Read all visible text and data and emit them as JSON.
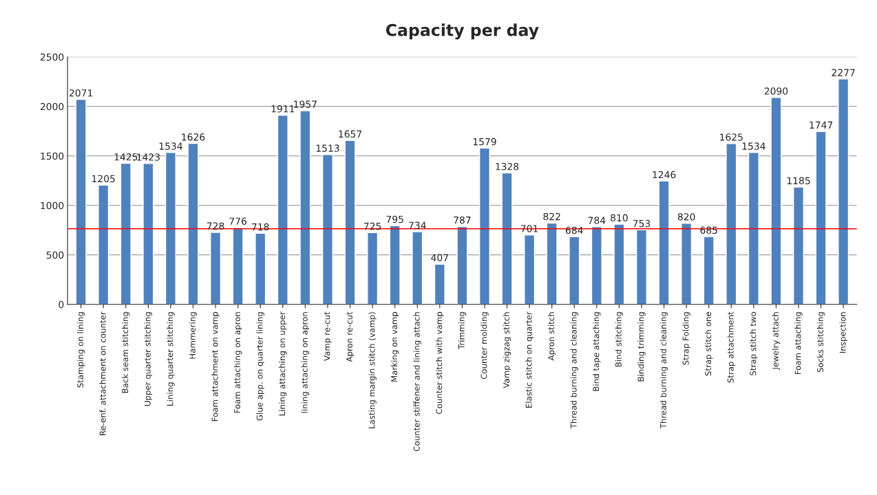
{
  "chart_data": {
    "type": "bar",
    "title": "Capacity per day",
    "categories": [
      "Stamping on lining",
      "Re-enf. attachment on counter",
      "Back seam stitching",
      "Upper quarter stitching",
      "Lining quarter stitching",
      "Hammering",
      "Foam attachment on vamp",
      "Foam attaching on apron",
      "Glue app. on quarter lining",
      "Lining attaching on upper",
      "lining attaching on apron",
      "Vamp re-cut",
      "Apron re-cut",
      "Lasting margin stitch (vamp)",
      "Marking on vamp",
      "Counter stiffener and lining attach",
      "Counter stitch with vamp",
      "Trimming",
      "Counter molding",
      "Vamp zigzag stitch",
      "Elastic stitch on quarter",
      "Apron stitch",
      "Thread burning and cleaning",
      "Bind tape attaching",
      "Bind stitching",
      "Binding trimming",
      "Thread burning and cleaning",
      "Strap Folding",
      "Strap stitch one",
      "Strap attachment",
      "Strap stitch two",
      "Jewelry attach",
      "Foam attaching",
      "Socks stitching",
      "Inspection"
    ],
    "values": [
      2071,
      1205,
      1425,
      1423,
      1534,
      1626,
      728,
      776,
      718,
      1911,
      1957,
      1513,
      1657,
      725,
      795,
      734,
      407,
      787,
      1579,
      1328,
      701,
      822,
      684,
      784,
      810,
      753,
      1246,
      820,
      685,
      1625,
      1534,
      2090,
      1185,
      1747,
      2277
    ],
    "color": "#4f81bd",
    "data_labels": true,
    "ylim": [
      0,
      2500
    ],
    "yticks": [
      0,
      500,
      1000,
      1500,
      2000,
      2500
    ],
    "grid": "y",
    "ref_lines": [
      {
        "axis": "y",
        "value": 764,
        "color": "#ff0000"
      }
    ]
  }
}
